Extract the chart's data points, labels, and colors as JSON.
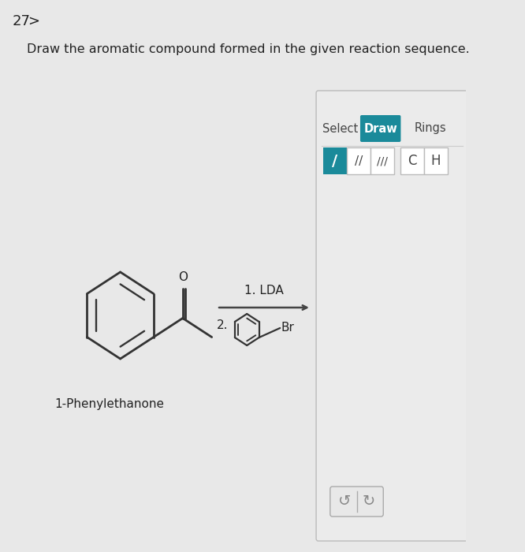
{
  "background_color": "#e8e8e8",
  "panel_color": "#f0f0f0",
  "title_number": "27",
  "question_text": "Draw the aromatic compound formed in the given reaction sequence.",
  "compound_label": "1-Phenylethanone",
  "reagent_1": "1. LDA",
  "reagent_2": "2.",
  "br_label": "Br",
  "select_label": "Select",
  "draw_label": "Draw",
  "rings_label": "Rings",
  "c_label": "C",
  "h_label": "H",
  "draw_btn_color": "#1a8a9a",
  "draw_btn_text_color": "#ffffff",
  "single_bond_btn_color": "#1a8a9a",
  "bond_btn_text_color": "#ffffff",
  "arrow_color": "#444444",
  "bond_color": "#333333",
  "text_color": "#222222",
  "toolbar_border": "#cccccc",
  "undo_redo_color": "#888888"
}
